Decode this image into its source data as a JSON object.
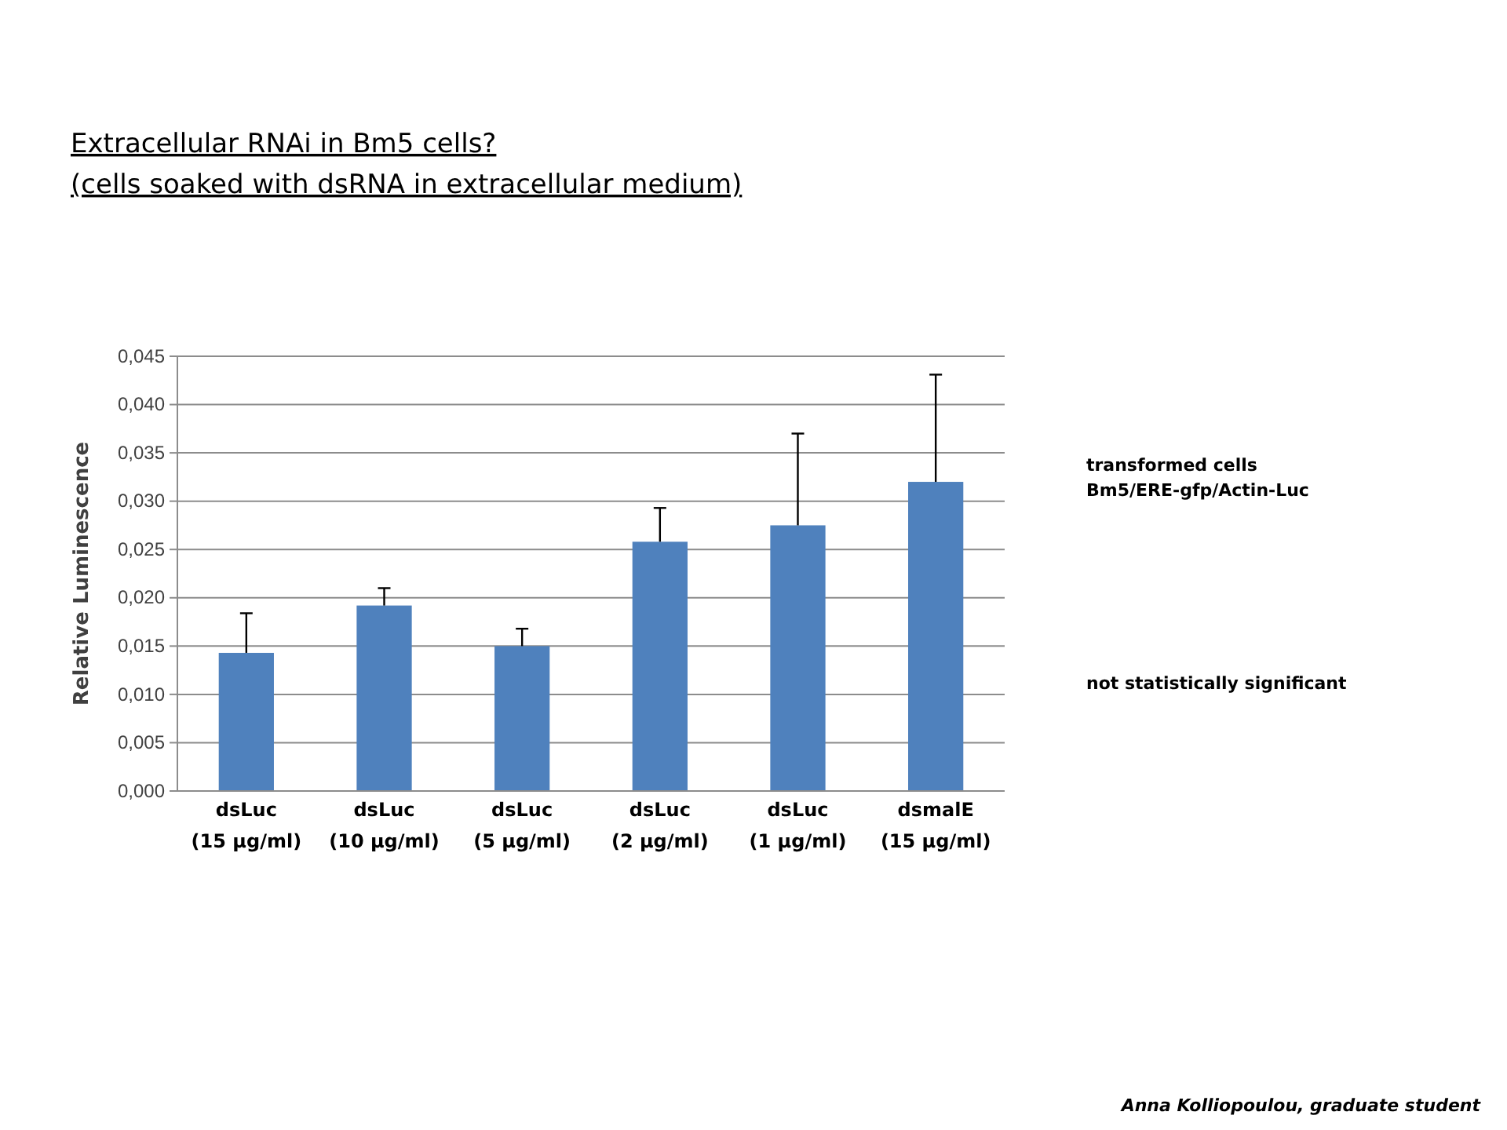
{
  "chart_data": {
    "type": "bar",
    "title": "Extracellular RNAi in Bm5 cells?",
    "subtitle": "(cells soaked with dsRNA in extracellular medium)",
    "ylabel": "Relative Luminescence",
    "categories": [
      "dsLuc (15 µg/ml)",
      "dsLuc (10 µg/ml)",
      "dsLuc (5 µg/ml)",
      "dsLuc (2 µg/ml)",
      "dsLuc (1 µg/ml)",
      "dsmalE (15 µg/ml)"
    ],
    "values": [
      0.0143,
      0.0192,
      0.015,
      0.0258,
      0.0275,
      0.032
    ],
    "errors": [
      [
        0.0143,
        0.0184
      ],
      [
        0.0192,
        0.021
      ],
      [
        0.015,
        0.0168
      ],
      [
        0.0258,
        0.0293
      ],
      [
        0.0275,
        0.037
      ],
      [
        0.032,
        0.0431
      ]
    ],
    "color": "#4f81bd",
    "ylim": [
      0,
      0.045
    ],
    "yticks": [
      {
        "value": 0,
        "label": "0,000"
      },
      {
        "value": 0.005,
        "label": "0,005"
      },
      {
        "value": 0.01,
        "label": "0,010"
      },
      {
        "value": 0.015,
        "label": "0,015"
      },
      {
        "value": 0.02,
        "label": "0,020"
      },
      {
        "value": 0.025,
        "label": "0,025"
      },
      {
        "value": 0.03,
        "label": "0,030"
      },
      {
        "value": 0.035,
        "label": "0,035"
      },
      {
        "value": 0.04,
        "label": "0,040"
      },
      {
        "value": 0.045,
        "label": "0,045"
      }
    ],
    "grid": "y",
    "annotations": [
      "transformed cells\nBm5/ERE-gfp/Actin-Luc",
      "not statistically significant",
      "Anna Kolliopoulou, graduate student"
    ]
  }
}
